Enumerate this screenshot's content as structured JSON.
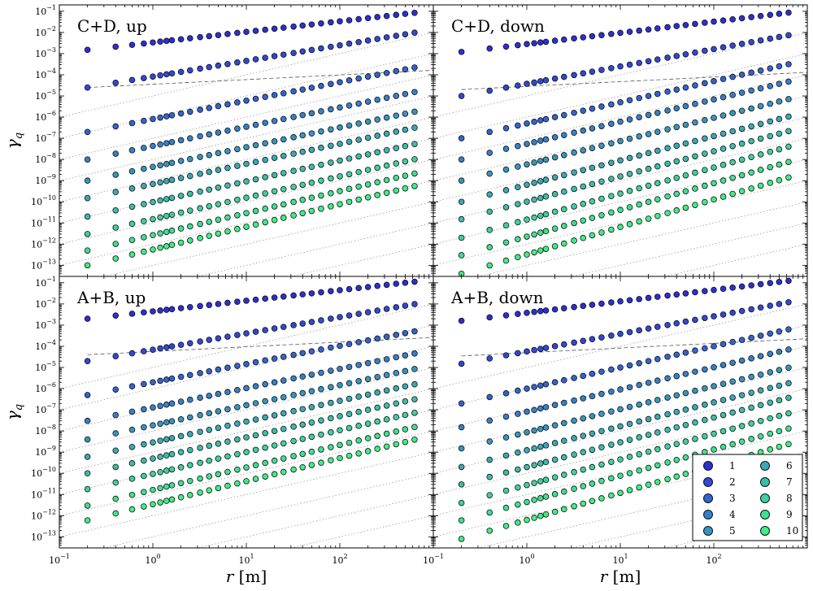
{
  "chart_data": {
    "type": "scatter",
    "layout": "2x2 grid, shared axes, log-log",
    "xlabel": "r",
    "xlabel_unit": "[m]",
    "ylabel": "γ",
    "ylabel_sub": "q",
    "x_scale": "log",
    "y_scale": "log",
    "xlim": [
      0.1,
      1000
    ],
    "ylim": [
      3e-14,
      0.2
    ],
    "x_ticks": [
      {
        "value": 0.1,
        "base": "10",
        "exp": "−1"
      },
      {
        "value": 1,
        "base": "10",
        "exp": "0"
      },
      {
        "value": 10,
        "base": "10",
        "exp": "1"
      },
      {
        "value": 100,
        "base": "10",
        "exp": "2"
      }
    ],
    "y_ticks": [
      {
        "value": 0.1,
        "base": "10",
        "exp": "−1"
      },
      {
        "value": 0.01,
        "base": "10",
        "exp": "−2"
      },
      {
        "value": 0.001,
        "base": "10",
        "exp": "−3"
      },
      {
        "value": 0.0001,
        "base": "10",
        "exp": "−4"
      },
      {
        "value": 1e-05,
        "base": "10",
        "exp": "−5"
      },
      {
        "value": 1e-06,
        "base": "10",
        "exp": "−6"
      },
      {
        "value": 1e-07,
        "base": "10",
        "exp": "−7"
      },
      {
        "value": 1e-08,
        "base": "10",
        "exp": "−8"
      },
      {
        "value": 1e-09,
        "base": "10",
        "exp": "−9"
      },
      {
        "value": 1e-10,
        "base": "10",
        "exp": "−10"
      },
      {
        "value": 1e-11,
        "base": "10",
        "exp": "−11"
      },
      {
        "value": 1e-12,
        "base": "10",
        "exp": "−12"
      },
      {
        "value": 1e-13,
        "base": "10",
        "exp": "−13"
      }
    ],
    "r_values": [
      0.2,
      0.4,
      0.6,
      0.8,
      1.0,
      1.2,
      1.4,
      1.6,
      2.0,
      2.5,
      3.2,
      4.0,
      5.0,
      6.3,
      8.0,
      10,
      12.6,
      15.9,
      20,
      25,
      32,
      40,
      50,
      63,
      80,
      100,
      126,
      159,
      200,
      252,
      317,
      400,
      500,
      630
    ],
    "guide_lines": {
      "dotted_slope": 1,
      "dotted_intercepts_at_r1": [
        1e-05,
        1e-06,
        1e-07,
        1e-08,
        1e-09,
        1e-10,
        1e-11,
        1e-12,
        1e-13,
        1e-14,
        1e-15
      ],
      "dashed_slope": 0.22
    },
    "legend": {
      "location": "lower-right of bottom-right panel",
      "entries": [
        "1",
        "2",
        "3",
        "4",
        "5",
        "6",
        "7",
        "8",
        "9",
        "10"
      ],
      "colors": [
        "#2b2fd4",
        "#2f48d6",
        "#3264d0",
        "#3580c8",
        "#3795be",
        "#3aa9b7",
        "#3cbcad",
        "#3fd0a0",
        "#3fe08f",
        "#3fee84"
      ]
    },
    "panels": [
      {
        "title": "C+D, up",
        "series": [
          {
            "q": 1,
            "y_start": 0.0015,
            "slope": 0.5,
            "r_min": 0.2
          },
          {
            "q": 2,
            "y_start": 2.5e-05,
            "slope": 0.74,
            "r_min": 0.2
          },
          {
            "q": 3,
            "y_start": 2e-07,
            "slope": 0.87,
            "r_min": 0.2
          },
          {
            "q": 4,
            "y_start": 1e-08,
            "slope": 0.91,
            "r_min": 0.2
          },
          {
            "q": 5,
            "y_start": 1e-09,
            "slope": 0.93,
            "r_min": 0.2
          },
          {
            "q": 6,
            "y_start": 1.5e-10,
            "slope": 0.95,
            "r_min": 0.2
          },
          {
            "q": 7,
            "y_start": 2e-11,
            "slope": 0.98,
            "r_min": 0.2
          },
          {
            "q": 8,
            "y_start": 3e-12,
            "slope": 1.01,
            "r_min": 0.2
          },
          {
            "q": 9,
            "y_start": 5e-13,
            "slope": 1.04,
            "r_min": 0.2
          },
          {
            "q": 10,
            "y_start": 1e-13,
            "slope": 1.07,
            "r_min": 0.2
          }
        ],
        "dashed_y_at_r0.2": 2.5e-05
      },
      {
        "title": "C+D, down",
        "series": [
          {
            "q": 1,
            "y_start": 0.0012,
            "slope": 0.53,
            "r_min": 0.2
          },
          {
            "q": 2,
            "y_start": 1e-05,
            "slope": 0.82,
            "r_min": 0.2
          },
          {
            "q": 3,
            "y_start": 1e-07,
            "slope": 1.0,
            "r_min": 0.2
          },
          {
            "q": 4,
            "y_start": 1e-08,
            "slope": 1.05,
            "r_min": 0.2
          },
          {
            "q": 5,
            "y_start": 1e-09,
            "slope": 1.1,
            "r_min": 0.2
          },
          {
            "q": 6,
            "y_start": 1e-10,
            "slope": 1.15,
            "r_min": 0.2
          },
          {
            "q": 7,
            "y_start": 1.5e-11,
            "slope": 1.19,
            "r_min": 0.2
          },
          {
            "q": 8,
            "y_start": 2e-12,
            "slope": 1.23,
            "r_min": 0.2
          },
          {
            "q": 9,
            "y_start": 3e-13,
            "slope": 1.26,
            "r_min": 0.2
          },
          {
            "q": 10,
            "y_start": 4e-14,
            "slope": 1.3,
            "r_min": 0.2
          }
        ],
        "dashed_y_at_r0.2": 2e-05
      },
      {
        "title": "A+B, up",
        "series": [
          {
            "q": 1,
            "y_start": 0.002,
            "slope": 0.5,
            "r_min": 0.2
          },
          {
            "q": 2,
            "y_start": 2e-05,
            "slope": 0.77,
            "r_min": 0.2
          },
          {
            "q": 3,
            "y_start": 5e-07,
            "slope": 0.86,
            "r_min": 0.2
          },
          {
            "q": 4,
            "y_start": 3e-08,
            "slope": 0.91,
            "r_min": 0.2
          },
          {
            "q": 5,
            "y_start": 4e-09,
            "slope": 0.95,
            "r_min": 0.2
          },
          {
            "q": 6,
            "y_start": 6e-10,
            "slope": 0.98,
            "r_min": 0.2
          },
          {
            "q": 7,
            "y_start": 1e-10,
            "slope": 1.0,
            "r_min": 0.2
          },
          {
            "q": 8,
            "y_start": 1.8e-11,
            "slope": 1.03,
            "r_min": 0.2
          },
          {
            "q": 9,
            "y_start": 3e-12,
            "slope": 1.06,
            "r_min": 0.2
          },
          {
            "q": 10,
            "y_start": 6e-13,
            "slope": 1.09,
            "r_min": 0.2
          }
        ],
        "dashed_y_at_r0.2": 4e-05
      },
      {
        "title": "A+B, down",
        "series": [
          {
            "q": 1,
            "y_start": 0.0016,
            "slope": 0.54,
            "r_min": 0.2
          },
          {
            "q": 2,
            "y_start": 1.5e-05,
            "slope": 0.83,
            "r_min": 0.2
          },
          {
            "q": 3,
            "y_start": 2e-07,
            "slope": 1.0,
            "r_min": 0.2
          },
          {
            "q": 4,
            "y_start": 1.5e-08,
            "slope": 1.05,
            "r_min": 0.2
          },
          {
            "q": 5,
            "y_start": 1.5e-09,
            "slope": 1.09,
            "r_min": 0.2
          },
          {
            "q": 6,
            "y_start": 2e-10,
            "slope": 1.13,
            "r_min": 0.2
          },
          {
            "q": 7,
            "y_start": 3e-11,
            "slope": 1.17,
            "r_min": 0.2
          },
          {
            "q": 8,
            "y_start": 4e-12,
            "slope": 1.21,
            "r_min": 0.2
          },
          {
            "q": 9,
            "y_start": 6e-13,
            "slope": 1.24,
            "r_min": 0.2
          },
          {
            "q": 10,
            "y_start": 8e-14,
            "slope": 1.28,
            "r_min": 0.2
          }
        ],
        "dashed_y_at_r0.2": 3.5e-05
      }
    ]
  }
}
